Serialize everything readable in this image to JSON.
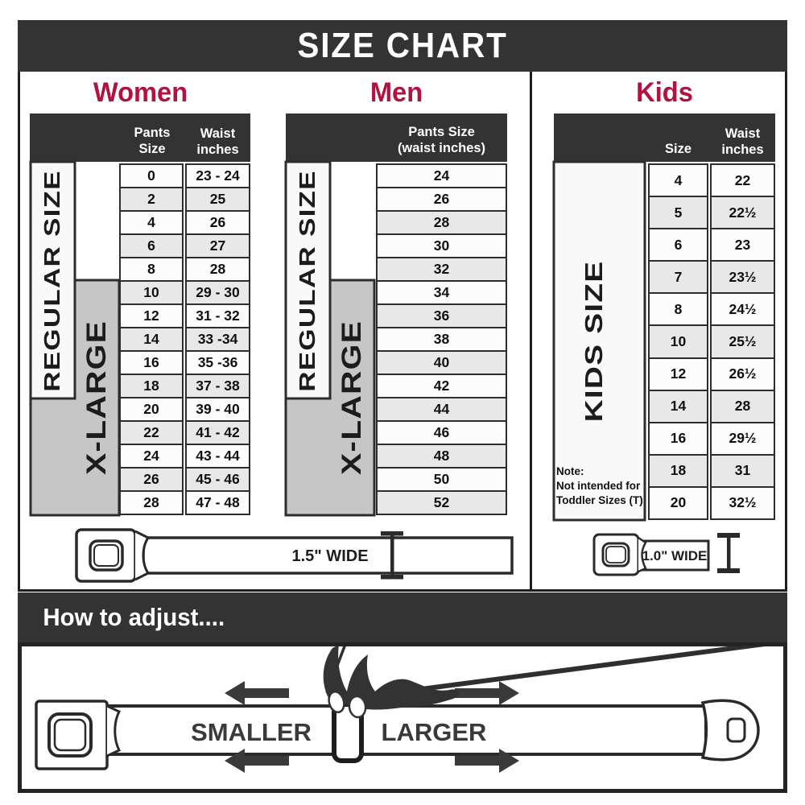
{
  "title": "SIZE CHART",
  "colors": {
    "bar_dark": "#333333",
    "accent_red": "#b01340",
    "row_white": "#fcfcfc",
    "row_stripe": "#e8e8e8",
    "xlarge_gray": "#c6c6c6",
    "border": "#2d2d2d"
  },
  "women": {
    "heading": "Women",
    "col_pants": "Pants Size",
    "col_waist": "Waist\ninches",
    "regular_label": "REGULAR SIZE",
    "xlarge_label": "X-LARGE",
    "rows": [
      [
        "0",
        "23 - 24"
      ],
      [
        "2",
        "25"
      ],
      [
        "4",
        "26"
      ],
      [
        "6",
        "27"
      ],
      [
        "8",
        "28"
      ],
      [
        "10",
        "29 - 30"
      ],
      [
        "12",
        "31 - 32"
      ],
      [
        "14",
        "33 -34"
      ],
      [
        "16",
        "35 -36"
      ],
      [
        "18",
        "37 - 38"
      ],
      [
        "20",
        "39 - 40"
      ],
      [
        "22",
        "41 - 42"
      ],
      [
        "24",
        "43 - 44"
      ],
      [
        "26",
        "45 - 46"
      ],
      [
        "28",
        "47 - 48"
      ]
    ]
  },
  "men": {
    "heading": "Men",
    "col_pants": "Pants Size\n(waist inches)",
    "regular_label": "REGULAR SIZE",
    "xlarge_label": "X-LARGE",
    "rows": [
      "24",
      "26",
      "28",
      "30",
      "32",
      "34",
      "36",
      "38",
      "40",
      "42",
      "44",
      "46",
      "48",
      "50",
      "52"
    ]
  },
  "kids": {
    "heading": "Kids",
    "col_size": "Size",
    "col_waist": "Waist\ninches",
    "side_label": "KIDS SIZE",
    "note": "Note:\nNot intended for\nToddler Sizes (T)",
    "rows": [
      [
        "4",
        "22"
      ],
      [
        "5",
        "22½"
      ],
      [
        "6",
        "23"
      ],
      [
        "7",
        "23½"
      ],
      [
        "8",
        "24½"
      ],
      [
        "10",
        "25½"
      ],
      [
        "12",
        "26½"
      ],
      [
        "14",
        "28"
      ],
      [
        "16",
        "29½"
      ],
      [
        "18",
        "31"
      ],
      [
        "20",
        "32½"
      ]
    ]
  },
  "belts": {
    "adult_width_label": "1.5\" WIDE",
    "kids_width_label": "1.0\" WIDE"
  },
  "adjust": {
    "heading": "How to adjust....",
    "smaller": "SMALLER",
    "larger": "LARGER"
  }
}
